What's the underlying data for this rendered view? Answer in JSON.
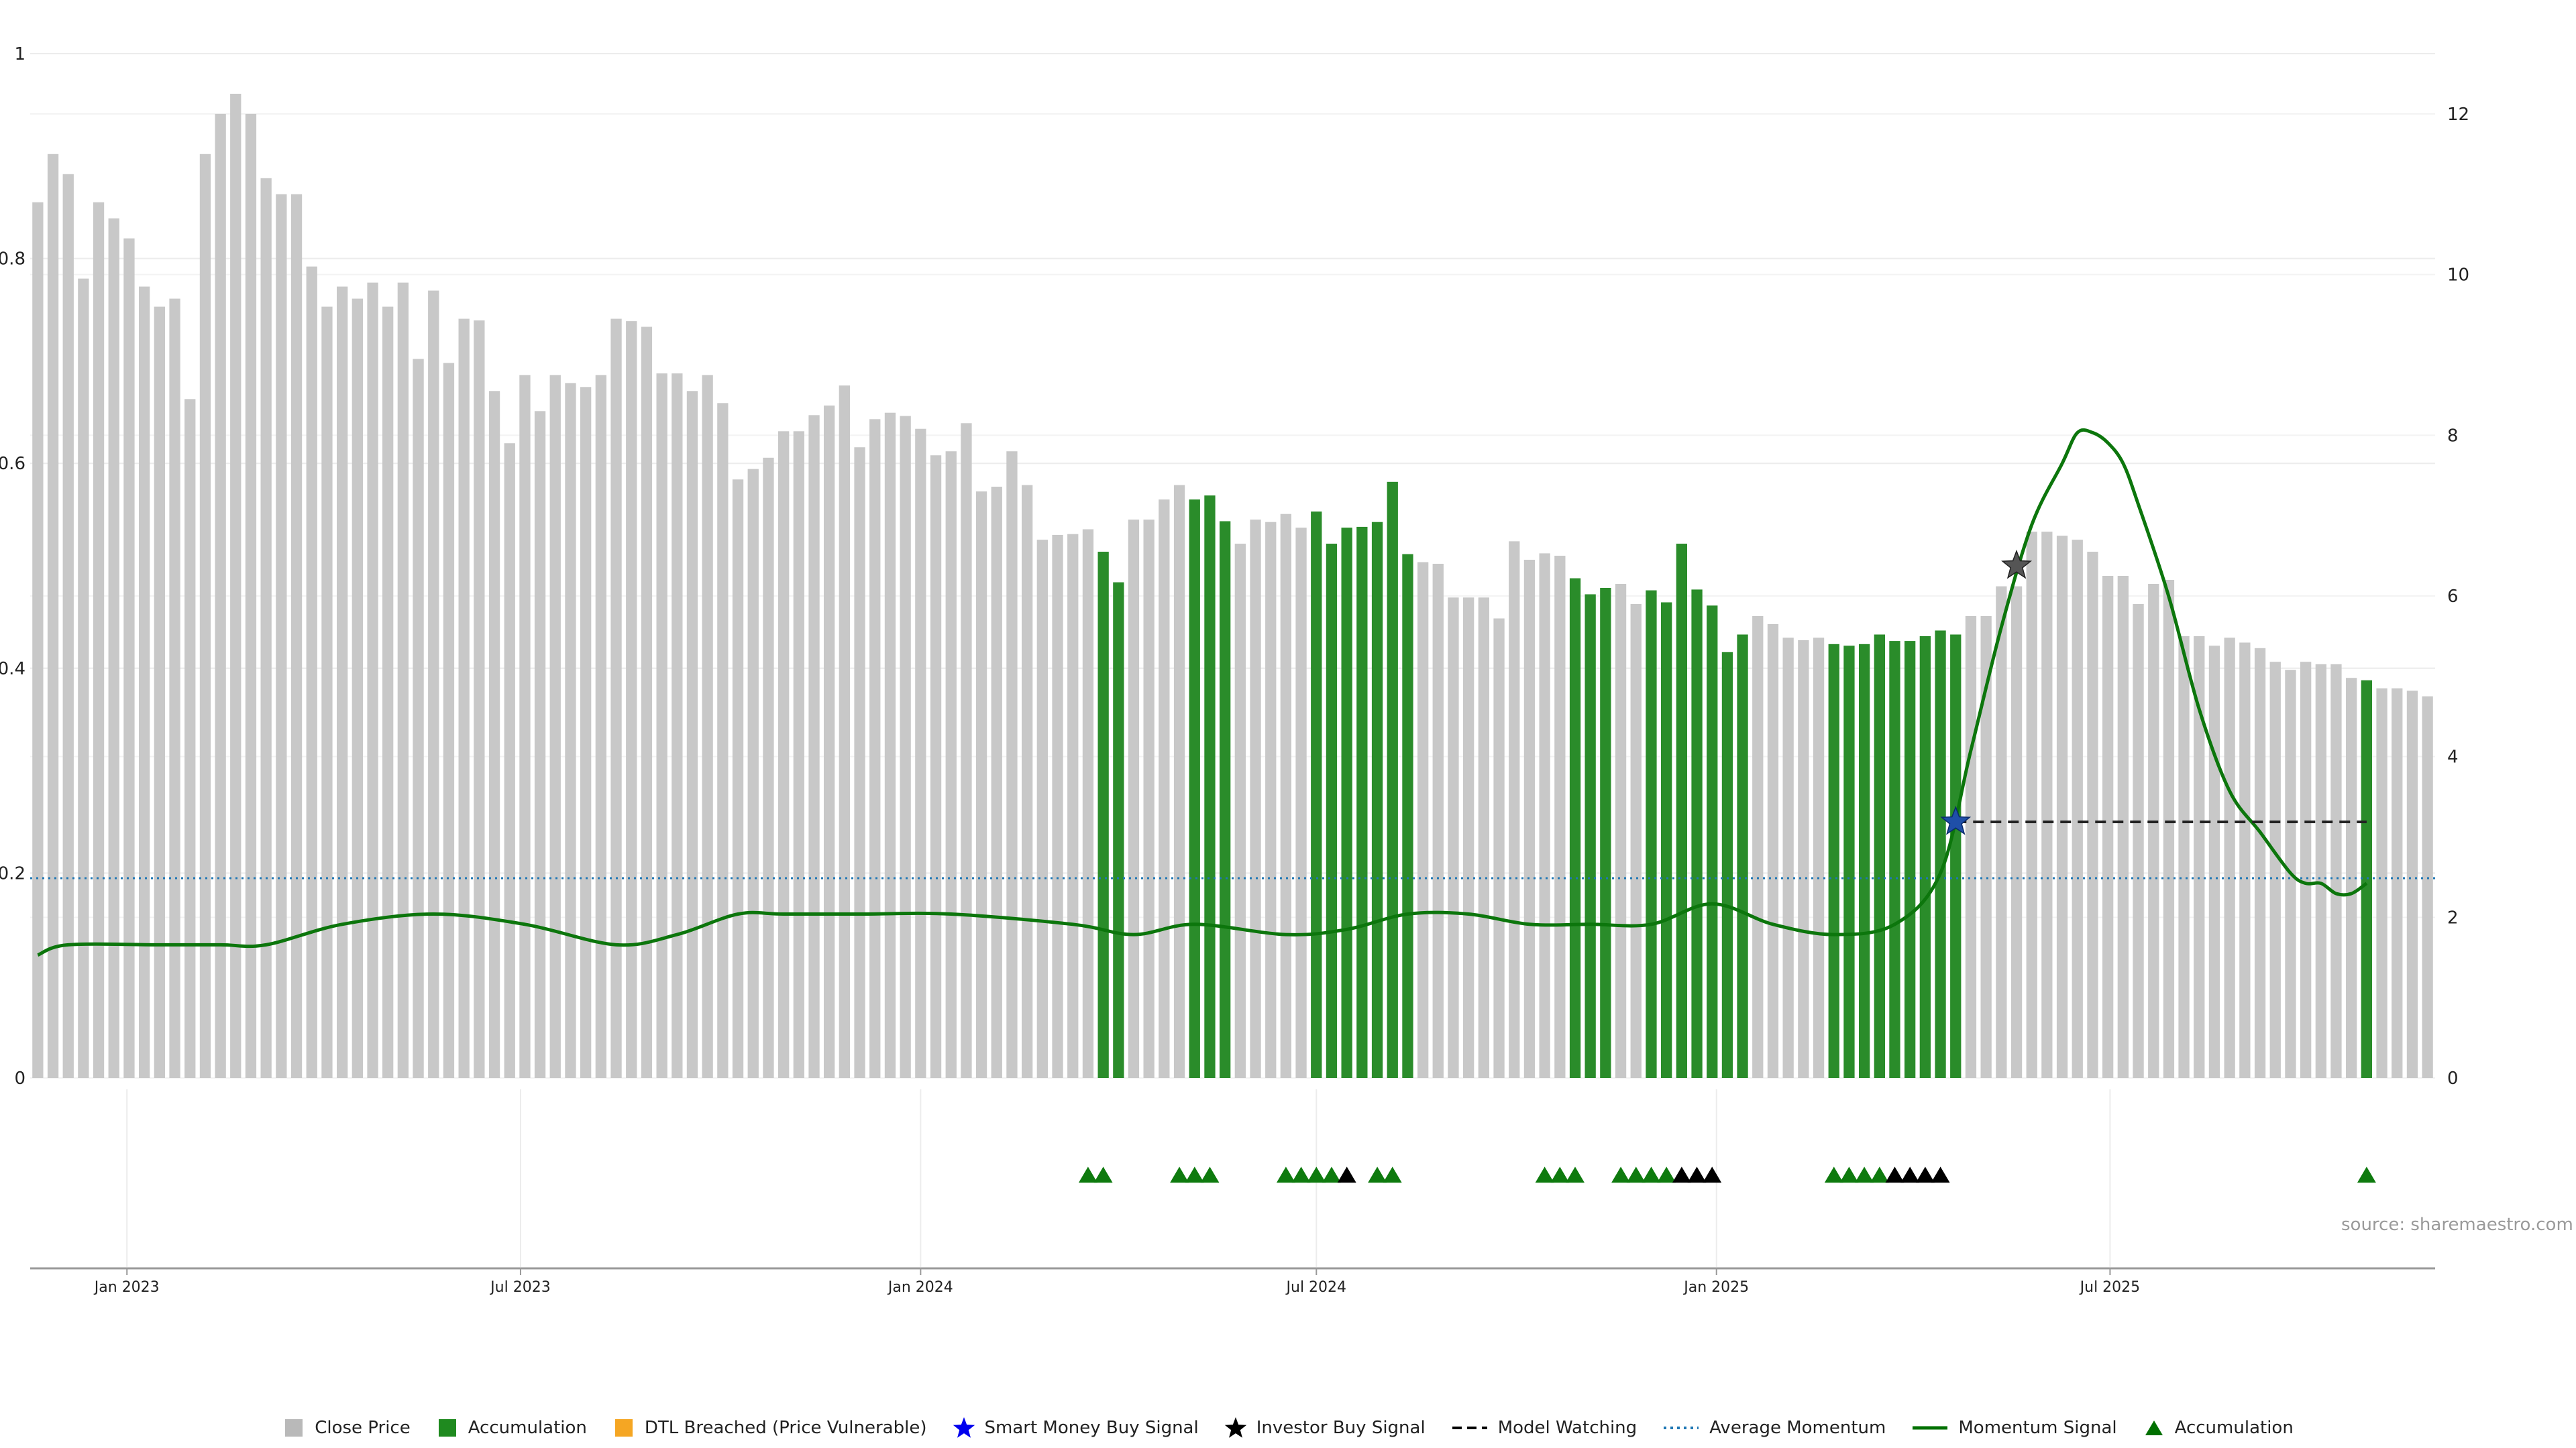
{
  "source_label": "source: sharemaestro.com",
  "legend": [
    {
      "key": "close",
      "label": "Close Price",
      "kind": "square",
      "color": "#b9b9b9"
    },
    {
      "key": "acc",
      "label": "Accumulation",
      "kind": "square",
      "color": "#1f8a1f"
    },
    {
      "key": "dtl",
      "label": "DTL Breached (Price Vulnerable)",
      "kind": "square",
      "color": "#f5a623"
    },
    {
      "key": "smart",
      "label": "Smart Money Buy Signal",
      "kind": "star",
      "color": "#0000ee"
    },
    {
      "key": "investor",
      "label": "Investor Buy Signal",
      "kind": "star",
      "color": "#000000"
    },
    {
      "key": "watch",
      "label": "Model Watching",
      "kind": "dash",
      "color": "#000000"
    },
    {
      "key": "avg",
      "label": "Average Momentum",
      "kind": "dotted",
      "color": "#1f77b4"
    },
    {
      "key": "momentum",
      "label": "Momentum Signal",
      "kind": "line",
      "color": "#007000"
    },
    {
      "key": "acc_marker",
      "label": "Accumulation",
      "kind": "triangle",
      "color": "#007000"
    }
  ],
  "chart_data": {
    "type": "bar",
    "left_axis": {
      "range": [
        0,
        1
      ],
      "ticks": [
        "0",
        "0.2",
        "0.4",
        "0.6",
        "0.8",
        "1"
      ]
    },
    "right_axis": {
      "range": [
        0,
        12.75
      ],
      "ticks": [
        "0",
        "2",
        "4",
        "6",
        "8",
        "10",
        "12"
      ]
    },
    "x_axis": {
      "start_date": "2022-11-21",
      "end_date": "2025-10-20",
      "tick_labels": [
        {
          "label": "Jan 2023",
          "date": "2023-01-01"
        },
        {
          "label": "Jul 2023",
          "date": "2023-07-01"
        },
        {
          "label": "Jan 2024",
          "date": "2024-01-01"
        },
        {
          "label": "Jul 2024",
          "date": "2024-07-01"
        },
        {
          "label": "Jan 2025",
          "date": "2025-01-01"
        },
        {
          "label": "Jul 2025",
          "date": "2025-07-01"
        }
      ]
    },
    "close_price": [
      10.9,
      11.5,
      11.25,
      9.95,
      10.9,
      10.7,
      10.45,
      9.85,
      9.6,
      9.7,
      8.45,
      11.5,
      12.0,
      12.25,
      12.0,
      11.2,
      11.0,
      11.0,
      10.1,
      9.6,
      9.85,
      9.7,
      9.9,
      9.6,
      9.9,
      8.95,
      9.8,
      8.9,
      9.45,
      9.43,
      8.55,
      7.9,
      8.75,
      8.3,
      8.75,
      8.65,
      8.6,
      8.75,
      9.45,
      9.42,
      9.35,
      8.77,
      8.77,
      8.55,
      8.75,
      8.4,
      7.45,
      7.58,
      7.72,
      8.05,
      8.05,
      8.25,
      8.37,
      8.62,
      7.85,
      8.2,
      8.28,
      8.24,
      8.08,
      7.75,
      7.8,
      8.15,
      7.3,
      7.36,
      7.8,
      7.38,
      6.7,
      6.76,
      6.77,
      6.83,
      6.55,
      6.17,
      6.95,
      6.95,
      7.2,
      7.38,
      7.2,
      7.25,
      6.93,
      6.65,
      6.95,
      6.92,
      7.02,
      6.85,
      7.05,
      6.65,
      6.85,
      6.86,
      6.92,
      7.42,
      6.52,
      6.42,
      6.4,
      5.98,
      5.98,
      5.98,
      5.72,
      6.68,
      6.45,
      6.53,
      6.5,
      6.22,
      6.02,
      6.1,
      6.15,
      5.9,
      6.07,
      5.92,
      6.65,
      6.08,
      5.88,
      5.3,
      5.52,
      5.75,
      5.65,
      5.48,
      5.45,
      5.48,
      5.4,
      5.38,
      5.4,
      5.52,
      5.44,
      5.44,
      5.5,
      5.57,
      5.52,
      5.75,
      5.75,
      6.12,
      6.12,
      6.8,
      6.8,
      6.75,
      6.7,
      6.55,
      6.25,
      6.25,
      5.9,
      6.15,
      6.2,
      5.5,
      5.5,
      5.38,
      5.48,
      5.42,
      5.35,
      5.18,
      5.08,
      5.18,
      5.15,
      5.15,
      4.98,
      4.95,
      4.85,
      4.85,
      4.82,
      4.75
    ],
    "accumulation_weeks": [
      70,
      71,
      76,
      77,
      78,
      84,
      85,
      86,
      87,
      88,
      89,
      90,
      101,
      102,
      103,
      106,
      107,
      108,
      109,
      110,
      111,
      112,
      118,
      119,
      120,
      121,
      122,
      123,
      124,
      125,
      126,
      153
    ],
    "momentum_signal": [
      [
        0,
        0.12
      ],
      [
        2,
        0.13
      ],
      [
        8,
        0.13
      ],
      [
        12,
        0.13
      ],
      [
        15,
        0.13
      ],
      [
        20,
        0.15
      ],
      [
        26,
        0.16
      ],
      [
        32,
        0.15
      ],
      [
        38,
        0.13
      ],
      [
        42,
        0.14
      ],
      [
        46,
        0.16
      ],
      [
        49,
        0.16
      ],
      [
        54,
        0.16
      ],
      [
        60,
        0.16
      ],
      [
        68,
        0.15
      ],
      [
        72,
        0.14
      ],
      [
        76,
        0.15
      ],
      [
        82,
        0.14
      ],
      [
        86,
        0.145
      ],
      [
        90,
        0.16
      ],
      [
        94,
        0.16
      ],
      [
        98,
        0.15
      ],
      [
        102,
        0.15
      ],
      [
        106,
        0.15
      ],
      [
        110,
        0.17
      ],
      [
        114,
        0.15
      ],
      [
        118,
        0.14
      ],
      [
        122,
        0.15
      ],
      [
        125,
        0.2
      ],
      [
        127,
        0.32
      ],
      [
        129,
        0.44
      ],
      [
        131,
        0.54
      ],
      [
        133,
        0.6
      ],
      [
        134,
        0.63
      ],
      [
        135,
        0.63
      ],
      [
        136,
        0.62
      ],
      [
        137,
        0.6
      ],
      [
        138,
        0.56
      ],
      [
        140,
        0.47
      ],
      [
        142,
        0.36
      ],
      [
        144,
        0.28
      ],
      [
        146,
        0.24
      ],
      [
        148,
        0.2
      ],
      [
        149,
        0.19
      ],
      [
        150,
        0.19
      ],
      [
        151,
        0.18
      ],
      [
        152,
        0.18
      ],
      [
        153,
        0.19
      ]
    ],
    "average_momentum": 0.195,
    "smart_money_signal": {
      "week": 126,
      "value": 0.25
    },
    "investor_buy_signal": {
      "week": 130,
      "value": 0.5
    },
    "model_watching": {
      "from_week": 126,
      "to_week": 153,
      "value": 0.25
    },
    "markers": {
      "accumulation_triangles": [
        69,
        70,
        75,
        76,
        77,
        82,
        83,
        84,
        85,
        88,
        89,
        99,
        100,
        101,
        104,
        105,
        106,
        107,
        118,
        119,
        120,
        121,
        153
      ],
      "investor_triangles": [
        86,
        108,
        109,
        110,
        122,
        123,
        124,
        125
      ]
    }
  }
}
